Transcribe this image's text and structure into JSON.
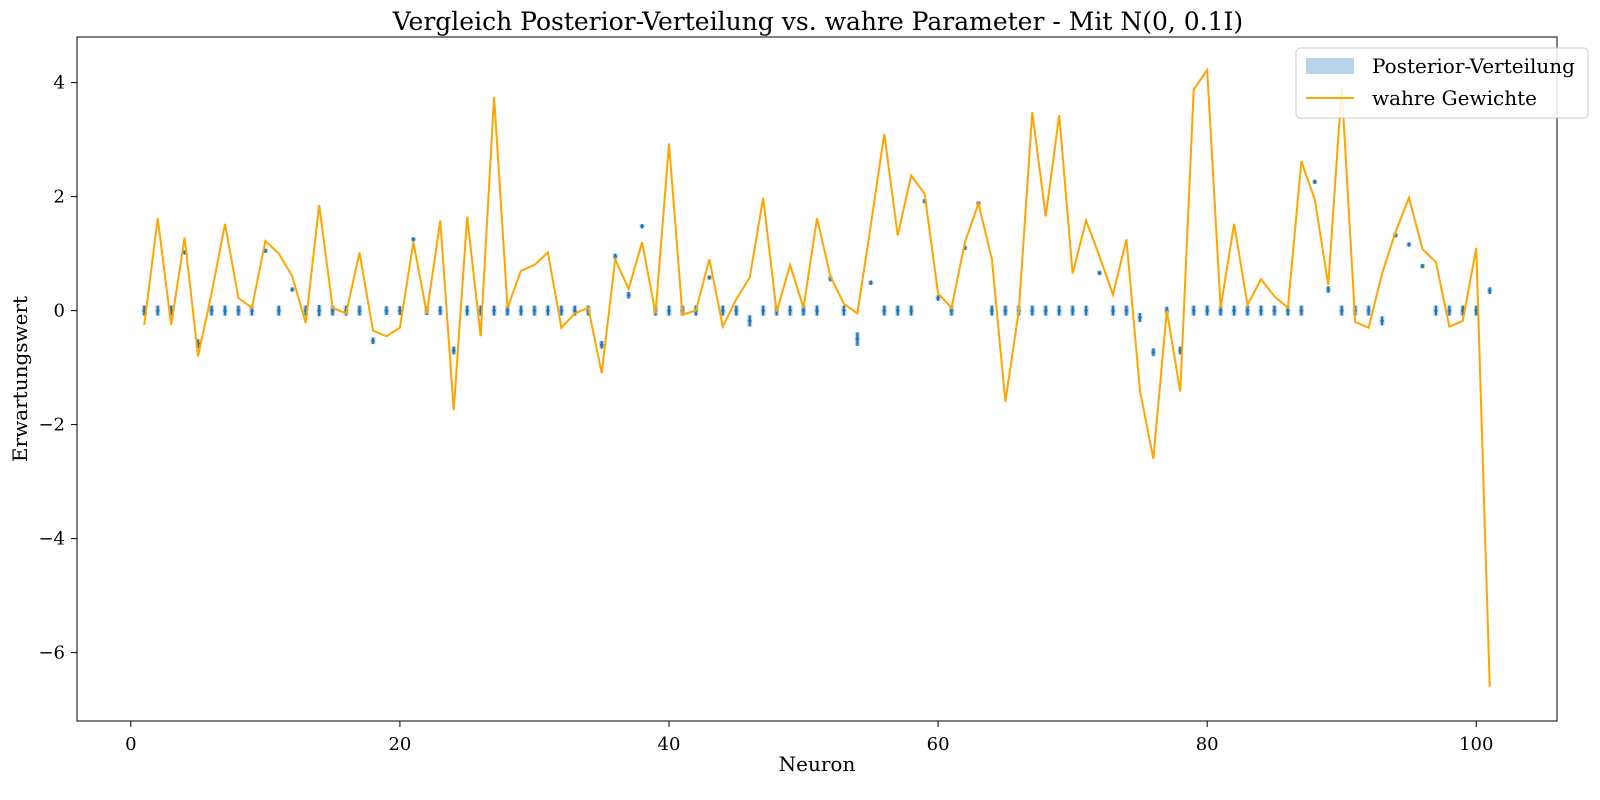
{
  "chart_data": {
    "type": "line",
    "title": "Vergleich Posterior-Verteilung vs. wahre Parameter - Mit N(0, 0.1I)",
    "xlabel": "Neuron",
    "ylabel": "Erwartungswert",
    "xlim": [
      -4,
      106
    ],
    "ylim": [
      -7.2,
      4.8
    ],
    "xticks": [
      0,
      20,
      40,
      60,
      80,
      100
    ],
    "yticks": [
      -6,
      -4,
      -2,
      0,
      2,
      4
    ],
    "xtick_labels": [
      "0",
      "20",
      "40",
      "60",
      "80",
      "100"
    ],
    "ytick_labels": [
      "−6",
      "−4",
      "−2",
      "0",
      "2",
      "4"
    ],
    "grid": false,
    "legend_position": "top-right",
    "x": [
      1,
      2,
      3,
      4,
      5,
      6,
      7,
      8,
      9,
      10,
      11,
      12,
      13,
      14,
      15,
      16,
      17,
      18,
      19,
      20,
      21,
      22,
      23,
      24,
      25,
      26,
      27,
      28,
      29,
      30,
      31,
      32,
      33,
      34,
      35,
      36,
      37,
      38,
      39,
      40,
      41,
      42,
      43,
      44,
      45,
      46,
      47,
      48,
      49,
      50,
      51,
      52,
      53,
      54,
      55,
      56,
      57,
      58,
      59,
      60,
      61,
      62,
      63,
      64,
      65,
      66,
      67,
      68,
      69,
      70,
      71,
      72,
      73,
      74,
      75,
      76,
      77,
      78,
      79,
      80,
      81,
      82,
      83,
      84,
      85,
      86,
      87,
      88,
      89,
      90,
      91,
      92,
      93,
      94,
      95,
      96,
      97,
      98,
      99,
      100,
      101
    ],
    "series": [
      {
        "name": "Posterior-Verteilung",
        "kind": "errorbar",
        "color": "#1f77b4",
        "band_color": "#b9d3ea",
        "values": [
          0,
          0,
          0,
          1.02,
          -0.58,
          0,
          0,
          0,
          0,
          1.05,
          0,
          0.37,
          0,
          0,
          0,
          0,
          0,
          -0.53,
          0,
          0,
          1.25,
          0,
          0,
          -0.7,
          0,
          0,
          0,
          0,
          0,
          0,
          0,
          0,
          0,
          0,
          -0.6,
          0.95,
          0.27,
          1.48,
          0,
          0,
          0,
          0,
          0.58,
          0,
          0,
          -0.18,
          0,
          0,
          0,
          0,
          0,
          0.56,
          0,
          -0.5,
          0.49,
          0,
          0,
          0,
          1.92,
          0.22,
          0,
          1.1,
          1.88,
          0,
          0,
          0,
          0,
          0,
          0,
          0,
          0,
          0.66,
          0,
          0,
          -0.12,
          -0.73,
          0,
          -0.7,
          0,
          0,
          0,
          0,
          0,
          0,
          0,
          0,
          0,
          2.26,
          0.37,
          0,
          0,
          0,
          -0.18,
          1.32,
          1.16,
          0.78,
          0,
          0,
          0,
          0,
          0.35
        ],
        "errors": [
          0.07,
          0.07,
          0.07,
          0.02,
          0.06,
          0.07,
          0.07,
          0.07,
          0.07,
          0.02,
          0.07,
          0.02,
          0.07,
          0.08,
          0.07,
          0.07,
          0.07,
          0.04,
          0.06,
          0.06,
          0.02,
          0.06,
          0.06,
          0.05,
          0.07,
          0.07,
          0.07,
          0.07,
          0.07,
          0.07,
          0.07,
          0.07,
          0.07,
          0.07,
          0.05,
          0.03,
          0.04,
          0.02,
          0.07,
          0.07,
          0.07,
          0.07,
          0.02,
          0.07,
          0.07,
          0.08,
          0.07,
          0.07,
          0.07,
          0.07,
          0.07,
          0.03,
          0.07,
          0.1,
          0.02,
          0.07,
          0.07,
          0.07,
          0.02,
          0.03,
          0.07,
          0.02,
          0.02,
          0.07,
          0.07,
          0.07,
          0.07,
          0.07,
          0.07,
          0.07,
          0.07,
          0.02,
          0.07,
          0.07,
          0.06,
          0.05,
          0.05,
          0.05,
          0.07,
          0.07,
          0.07,
          0.07,
          0.07,
          0.07,
          0.07,
          0.07,
          0.07,
          0.02,
          0.04,
          0.07,
          0.07,
          0.07,
          0.06,
          0.02,
          0.02,
          0.02,
          0.07,
          0.07,
          0.07,
          0.07,
          0.04
        ]
      },
      {
        "name": "wahre Gewichte",
        "kind": "line",
        "color": "#ffa500",
        "values": [
          -0.25,
          1.62,
          -0.25,
          1.28,
          -0.8,
          0.3,
          1.52,
          0.22,
          0.05,
          1.22,
          1.0,
          0.6,
          -0.22,
          1.85,
          0.05,
          -0.05,
          1.02,
          -0.35,
          -0.45,
          -0.3,
          1.2,
          -0.05,
          1.58,
          -1.75,
          1.65,
          -0.45,
          3.75,
          0.05,
          0.7,
          0.8,
          1.02,
          -0.3,
          -0.05,
          0.05,
          -1.1,
          0.9,
          0.38,
          1.2,
          -0.05,
          2.93,
          -0.07,
          0.0,
          0.9,
          -0.28,
          0.2,
          0.58,
          1.98,
          -0.02,
          0.8,
          0.05,
          1.62,
          0.6,
          0.12,
          -0.05,
          1.5,
          3.1,
          1.32,
          2.37,
          2.05,
          0.3,
          0.05,
          1.2,
          1.88,
          0.9,
          -1.6,
          0.0,
          3.48,
          1.65,
          3.43,
          0.65,
          1.58,
          0.95,
          0.28,
          1.25,
          -1.4,
          -2.6,
          0.0,
          -1.42,
          3.88,
          4.22,
          0.05,
          1.52,
          0.1,
          0.55,
          0.25,
          0.05,
          2.62,
          1.95,
          0.45,
          3.92,
          -0.2,
          -0.3,
          0.65,
          1.38,
          1.98,
          1.08,
          0.85,
          -0.28,
          -0.18,
          1.1,
          -6.6
        ]
      }
    ]
  }
}
